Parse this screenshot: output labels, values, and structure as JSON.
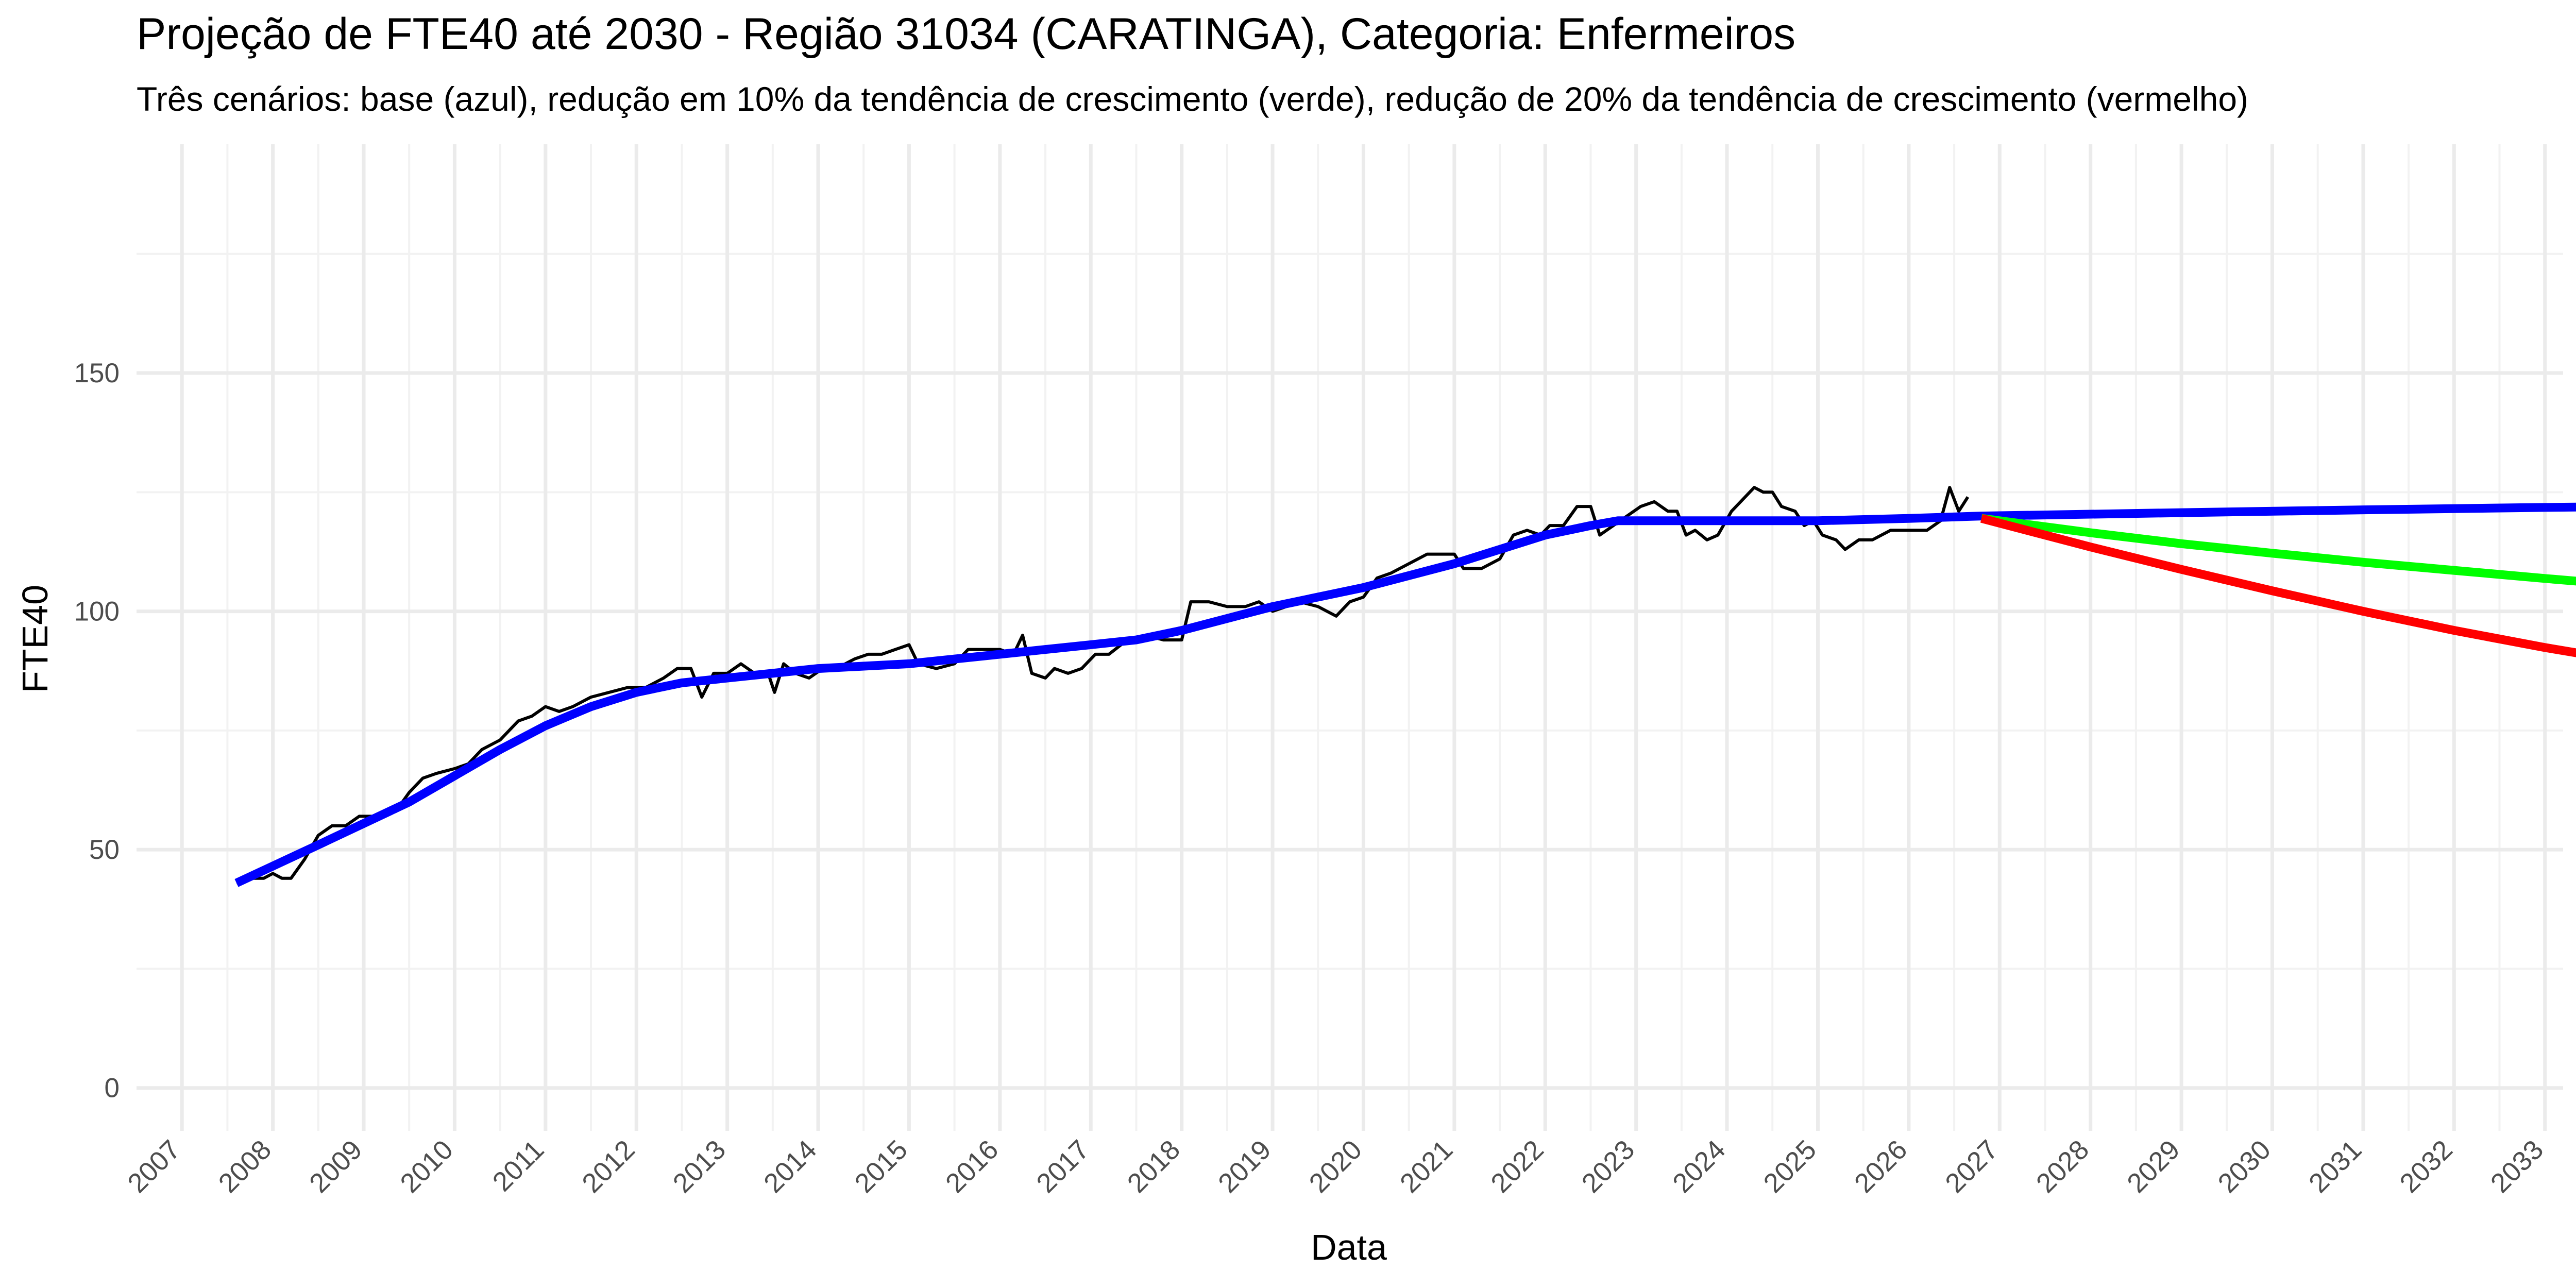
{
  "chart_data": {
    "type": "line",
    "title": "Projeção de FTE40 até 2030 - Região 31034 (CARATINGA), Categoria: Enfermeiros",
    "subtitle": "Três cenários: base (azul), redução em 10% da tendência de crescimento (verde), redução de 20% da tendência de crescimento (vermelho)",
    "xlabel": "Data",
    "ylabel": "FTE40",
    "xlim": [
      2006.5,
      2033.2
    ],
    "ylim": [
      -9,
      198
    ],
    "x_ticks": [
      2007,
      2008,
      2009,
      2010,
      2011,
      2012,
      2013,
      2014,
      2015,
      2016,
      2017,
      2018,
      2019,
      2020,
      2021,
      2022,
      2023,
      2024,
      2025,
      2026,
      2027,
      2028,
      2029,
      2030,
      2031,
      2032,
      2033
    ],
    "x_tick_labels": [
      "2007",
      "2008",
      "2009",
      "2010",
      "2011",
      "2012",
      "2013",
      "2014",
      "2015",
      "2016",
      "2017",
      "2018",
      "2019",
      "2020",
      "2021",
      "2022",
      "2023",
      "2024",
      "2025",
      "2026",
      "2027",
      "2028",
      "2029",
      "2030",
      "2031",
      "2032",
      "2033"
    ],
    "y_ticks": [
      0,
      50,
      100,
      150
    ],
    "y_tick_labels": [
      "0",
      "50",
      "100",
      "150"
    ],
    "grid": true,
    "legend": "none",
    "series": [
      {
        "color": "#000000",
        "points": [
          [
            2007.6,
            43
          ],
          [
            2007.75,
            44
          ],
          [
            2007.9,
            44
          ],
          [
            2008.0,
            45
          ],
          [
            2008.1,
            44
          ],
          [
            2008.2,
            44
          ],
          [
            2008.35,
            48
          ],
          [
            2008.5,
            53
          ],
          [
            2008.65,
            55
          ],
          [
            2008.8,
            55
          ],
          [
            2008.95,
            57
          ],
          [
            2009.1,
            57
          ],
          [
            2009.25,
            58
          ],
          [
            2009.35,
            58
          ],
          [
            2009.5,
            62
          ],
          [
            2009.65,
            65
          ],
          [
            2009.8,
            66
          ],
          [
            2010.0,
            67
          ],
          [
            2010.15,
            68
          ],
          [
            2010.3,
            71
          ],
          [
            2010.5,
            73
          ],
          [
            2010.7,
            77
          ],
          [
            2010.85,
            78
          ],
          [
            2011.0,
            80
          ],
          [
            2011.15,
            79
          ],
          [
            2011.3,
            80
          ],
          [
            2011.5,
            82
          ],
          [
            2011.7,
            83
          ],
          [
            2011.9,
            84
          ],
          [
            2012.1,
            84
          ],
          [
            2012.3,
            86
          ],
          [
            2012.45,
            88
          ],
          [
            2012.6,
            88
          ],
          [
            2012.72,
            82
          ],
          [
            2012.85,
            87
          ],
          [
            2013.0,
            87
          ],
          [
            2013.15,
            89
          ],
          [
            2013.3,
            87
          ],
          [
            2013.45,
            87
          ],
          [
            2013.52,
            83
          ],
          [
            2013.62,
            89
          ],
          [
            2013.75,
            87
          ],
          [
            2013.9,
            86
          ],
          [
            2014.05,
            88
          ],
          [
            2014.2,
            88
          ],
          [
            2014.4,
            90
          ],
          [
            2014.55,
            91
          ],
          [
            2014.7,
            91
          ],
          [
            2014.85,
            92
          ],
          [
            2015.0,
            93
          ],
          [
            2015.1,
            89
          ],
          [
            2015.3,
            88
          ],
          [
            2015.5,
            89
          ],
          [
            2015.65,
            92
          ],
          [
            2015.8,
            92
          ],
          [
            2016.0,
            92
          ],
          [
            2016.15,
            91
          ],
          [
            2016.25,
            95
          ],
          [
            2016.35,
            87
          ],
          [
            2016.5,
            86
          ],
          [
            2016.6,
            88
          ],
          [
            2016.75,
            87
          ],
          [
            2016.9,
            88
          ],
          [
            2017.05,
            91
          ],
          [
            2017.2,
            91
          ],
          [
            2017.4,
            94
          ],
          [
            2017.6,
            95
          ],
          [
            2017.8,
            94
          ],
          [
            2018.0,
            94
          ],
          [
            2018.1,
            102
          ],
          [
            2018.3,
            102
          ],
          [
            2018.5,
            101
          ],
          [
            2018.7,
            101
          ],
          [
            2018.85,
            102
          ],
          [
            2019.0,
            100
          ],
          [
            2019.15,
            101
          ],
          [
            2019.3,
            102
          ],
          [
            2019.5,
            101
          ],
          [
            2019.7,
            99
          ],
          [
            2019.85,
            102
          ],
          [
            2020.0,
            103
          ],
          [
            2020.15,
            107
          ],
          [
            2020.3,
            108
          ],
          [
            2020.5,
            110
          ],
          [
            2020.7,
            112
          ],
          [
            2020.85,
            112
          ],
          [
            2021.0,
            112
          ],
          [
            2021.1,
            109
          ],
          [
            2021.3,
            109
          ],
          [
            2021.5,
            111
          ],
          [
            2021.65,
            116
          ],
          [
            2021.8,
            117
          ],
          [
            2021.95,
            116
          ],
          [
            2022.05,
            118
          ],
          [
            2022.2,
            118
          ],
          [
            2022.35,
            122
          ],
          [
            2022.5,
            122
          ],
          [
            2022.6,
            116
          ],
          [
            2022.75,
            118
          ],
          [
            2022.9,
            120
          ],
          [
            2023.05,
            122
          ],
          [
            2023.2,
            123
          ],
          [
            2023.35,
            121
          ],
          [
            2023.45,
            121
          ],
          [
            2023.55,
            116
          ],
          [
            2023.65,
            117
          ],
          [
            2023.78,
            115
          ],
          [
            2023.9,
            116
          ],
          [
            2024.05,
            121
          ],
          [
            2024.2,
            124
          ],
          [
            2024.3,
            126
          ],
          [
            2024.4,
            125
          ],
          [
            2024.5,
            125
          ],
          [
            2024.6,
            122
          ],
          [
            2024.75,
            121
          ],
          [
            2024.85,
            118
          ],
          [
            2024.95,
            119
          ],
          [
            2025.05,
            116
          ],
          [
            2025.2,
            115
          ],
          [
            2025.3,
            113
          ],
          [
            2025.45,
            115
          ],
          [
            2025.6,
            115
          ],
          [
            2025.8,
            117
          ],
          [
            2026.0,
            117
          ],
          [
            2026.2,
            117
          ],
          [
            2026.35,
            119
          ],
          [
            2026.45,
            126
          ],
          [
            2026.55,
            121
          ],
          [
            2026.65,
            124
          ]
        ]
      },
      {
        "color": "#0000ff",
        "points": [
          [
            2007.6,
            43
          ],
          [
            2008.5,
            51
          ],
          [
            2009.5,
            60
          ],
          [
            2010.5,
            71
          ],
          [
            2011.0,
            76
          ],
          [
            2011.5,
            80
          ],
          [
            2012.0,
            83
          ],
          [
            2012.5,
            85
          ],
          [
            2013.0,
            86
          ],
          [
            2014.0,
            88
          ],
          [
            2015.0,
            89
          ],
          [
            2016.0,
            91
          ],
          [
            2017.0,
            93
          ],
          [
            2017.5,
            94
          ],
          [
            2018.0,
            96
          ],
          [
            2019.0,
            101
          ],
          [
            2020.0,
            105
          ],
          [
            2021.0,
            110
          ],
          [
            2021.5,
            113
          ],
          [
            2022.0,
            116
          ],
          [
            2022.5,
            118
          ],
          [
            2022.8,
            119
          ],
          [
            2024.0,
            119
          ],
          [
            2025.0,
            119
          ],
          [
            2026.0,
            119.5
          ],
          [
            2026.8,
            120
          ],
          [
            2029.0,
            120.7
          ],
          [
            2031.0,
            121.3
          ],
          [
            2033.0,
            121.8
          ],
          [
            2034.0,
            122
          ]
        ]
      },
      {
        "color": "#00ff00",
        "points": [
          [
            2026.8,
            119.5
          ],
          [
            2028.0,
            116.5
          ],
          [
            2029.0,
            114.2
          ],
          [
            2030.0,
            112.2
          ],
          [
            2031.0,
            110.3
          ],
          [
            2032.0,
            108.6
          ],
          [
            2033.0,
            106.9
          ],
          [
            2034.0,
            105.3
          ]
        ]
      },
      {
        "color": "#ff0000",
        "points": [
          [
            2026.8,
            119.5
          ],
          [
            2028.0,
            113.5
          ],
          [
            2029.0,
            108.8
          ],
          [
            2030.0,
            104.3
          ],
          [
            2031.0,
            100.0
          ],
          [
            2032.0,
            96.0
          ],
          [
            2033.0,
            92.4
          ],
          [
            2034.0,
            89.2
          ]
        ]
      }
    ]
  }
}
